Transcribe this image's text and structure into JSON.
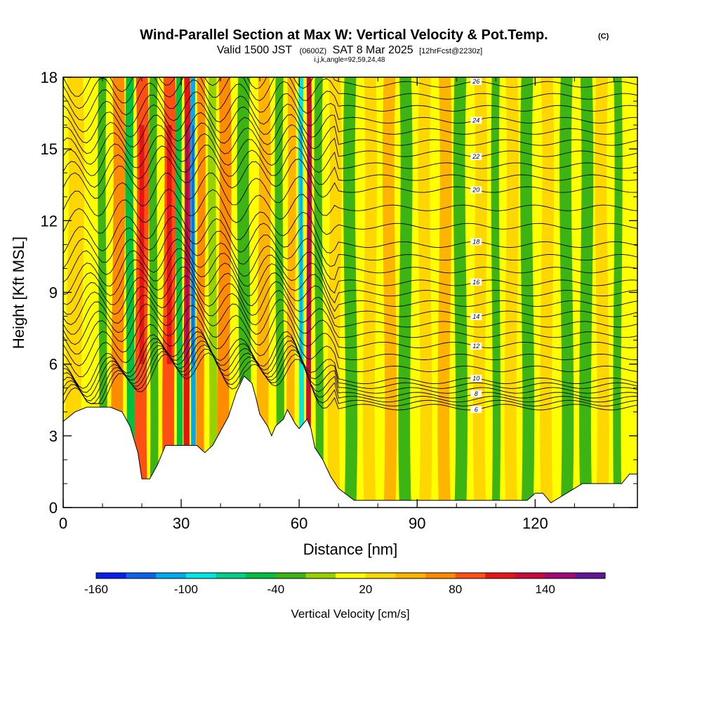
{
  "chart_data": {
    "type": "heatmap",
    "title": "Wind-Parallel Section at Max W: Vertical Velocity & Pot.Temp.",
    "title_mark": "(C)",
    "subtitle_parts": [
      "Valid 1500 JST",
      "(0600Z)",
      "SAT 8 Mar 2025",
      "[12hrFcst@2230z]"
    ],
    "subtitle2": "i,j,k,angle=92,59,24,48",
    "xlabel": "Distance [nm]",
    "ylabel": "Height [Kft MSL]",
    "xlim": [
      0,
      146
    ],
    "ylim": [
      0,
      18
    ],
    "x_ticks": [
      "0",
      "30",
      "60",
      "90",
      "120"
    ],
    "x_tick_values": [
      0,
      30,
      60,
      90,
      120
    ],
    "y_ticks": [
      "0",
      "3",
      "6",
      "9",
      "12",
      "15",
      "18"
    ],
    "y_tick_values": [
      0,
      3,
      6,
      9,
      12,
      15,
      18
    ],
    "colorbar": {
      "label": "Vertical Velocity [cm/s]",
      "tick_labels": [
        "-160",
        "-100",
        "-40",
        "20",
        "80",
        "140"
      ],
      "tick_values": [
        -160,
        -100,
        -40,
        20,
        80,
        140
      ],
      "levels": [
        -160,
        -140,
        -120,
        -100,
        -80,
        -60,
        -40,
        -20,
        0,
        20,
        40,
        60,
        80,
        100,
        120,
        140,
        160
      ],
      "colors": [
        "#0a1ef0",
        "#0a64f0",
        "#00aaee",
        "#00e6e6",
        "#00d08c",
        "#00c040",
        "#3cb414",
        "#96d200",
        "#ffff00",
        "#ffd700",
        "#ffb400",
        "#ff8c00",
        "#ff5014",
        "#e61414",
        "#c80a3c",
        "#a00a78",
        "#64149b"
      ]
    },
    "terrain_kft": [
      [
        0,
        3.6
      ],
      [
        3,
        4.0
      ],
      [
        6,
        4.2
      ],
      [
        9,
        4.2
      ],
      [
        12,
        4.2
      ],
      [
        15,
        4.0
      ],
      [
        17,
        3.4
      ],
      [
        19,
        2.3
      ],
      [
        20,
        1.2
      ],
      [
        22,
        1.2
      ],
      [
        24,
        1.8
      ],
      [
        26,
        2.6
      ],
      [
        30,
        2.6
      ],
      [
        34,
        2.6
      ],
      [
        36,
        2.3
      ],
      [
        38,
        2.6
      ],
      [
        40,
        3.2
      ],
      [
        42,
        3.8
      ],
      [
        44,
        4.8
      ],
      [
        46,
        5.5
      ],
      [
        48,
        5.2
      ],
      [
        49,
        4.6
      ],
      [
        50,
        3.9
      ],
      [
        52,
        3.4
      ],
      [
        53,
        3.0
      ],
      [
        54,
        3.4
      ],
      [
        56,
        3.7
      ],
      [
        57,
        4.1
      ],
      [
        59,
        3.5
      ],
      [
        60,
        3.3
      ],
      [
        62,
        3.7
      ],
      [
        63,
        3.3
      ],
      [
        64,
        2.5
      ],
      [
        66,
        2.0
      ],
      [
        68,
        1.3
      ],
      [
        70,
        0.8
      ],
      [
        74,
        0.3
      ],
      [
        100,
        0.3
      ],
      [
        118,
        0.3
      ],
      [
        120,
        0.6
      ],
      [
        122,
        0.6
      ],
      [
        124,
        0.2
      ],
      [
        128,
        0.6
      ],
      [
        132,
        1.0
      ],
      [
        142,
        1.0
      ],
      [
        144,
        1.4
      ],
      [
        146,
        1.4
      ]
    ],
    "w_bands": [
      {
        "x": 3,
        "w": 4,
        "v": 20
      },
      {
        "x": 10,
        "w": 2,
        "v": -40
      },
      {
        "x": 14,
        "w": 3,
        "v": 60
      },
      {
        "x": 17,
        "w": 2,
        "v": -60
      },
      {
        "x": 20,
        "w": 3,
        "v": 80
      },
      {
        "x": 23,
        "w": 2,
        "v": -40
      },
      {
        "x": 27,
        "w": 3,
        "v": 80
      },
      {
        "x": 29.5,
        "w": 1.5,
        "v": -60
      },
      {
        "x": 31.5,
        "w": 1.5,
        "v": 110
      },
      {
        "x": 33,
        "w": 1.2,
        "v": -110
      },
      {
        "x": 35,
        "w": 2,
        "v": 60
      },
      {
        "x": 38,
        "w": 2,
        "v": -20
      },
      {
        "x": 41,
        "w": 3,
        "v": 60
      },
      {
        "x": 46,
        "w": 3,
        "v": -40
      },
      {
        "x": 51,
        "w": 3,
        "v": 40
      },
      {
        "x": 55,
        "w": 2,
        "v": -40
      },
      {
        "x": 58,
        "w": 2,
        "v": 40
      },
      {
        "x": 60.5,
        "w": 1.2,
        "v": -100
      },
      {
        "x": 62.5,
        "w": 1.2,
        "v": 120
      },
      {
        "x": 65,
        "w": 2,
        "v": -40
      },
      {
        "x": 69,
        "w": 3,
        "v": 20
      },
      {
        "x": 73,
        "w": 3,
        "v": -40
      },
      {
        "x": 78,
        "w": 3,
        "v": 20
      },
      {
        "x": 83,
        "w": 3,
        "v": 40
      },
      {
        "x": 87,
        "w": 3,
        "v": -40
      },
      {
        "x": 92,
        "w": 3,
        "v": 20
      },
      {
        "x": 97,
        "w": 3,
        "v": 40
      },
      {
        "x": 101,
        "w": 3,
        "v": -40
      },
      {
        "x": 106,
        "w": 3,
        "v": 20
      },
      {
        "x": 110,
        "w": 2,
        "v": -40
      },
      {
        "x": 114,
        "w": 3,
        "v": 20
      },
      {
        "x": 118,
        "w": 3,
        "v": -40
      },
      {
        "x": 123,
        "w": 3,
        "v": 20
      },
      {
        "x": 128,
        "w": 3,
        "v": -40
      },
      {
        "x": 133,
        "w": 3,
        "v": -40
      },
      {
        "x": 137,
        "w": 3,
        "v": 20
      },
      {
        "x": 141,
        "w": 2,
        "v": -40
      }
    ],
    "theta_contours": [
      {
        "label": "6",
        "east_kft": 4.2
      },
      {
        "label": "8",
        "east_kft": 4.7
      },
      {
        "label": "10",
        "east_kft": 5.3
      },
      {
        "label": "12",
        "east_kft": 6.8
      },
      {
        "label": "14",
        "east_kft": 8.1
      },
      {
        "label": "16",
        "east_kft": 9.4
      },
      {
        "label": "18",
        "east_kft": 11.0
      },
      {
        "label": "20",
        "east_kft": 13.3
      },
      {
        "label": "22",
        "east_kft": 14.8
      },
      {
        "label": "24",
        "east_kft": 16.2
      },
      {
        "label": "26",
        "east_kft": 17.7
      }
    ]
  }
}
